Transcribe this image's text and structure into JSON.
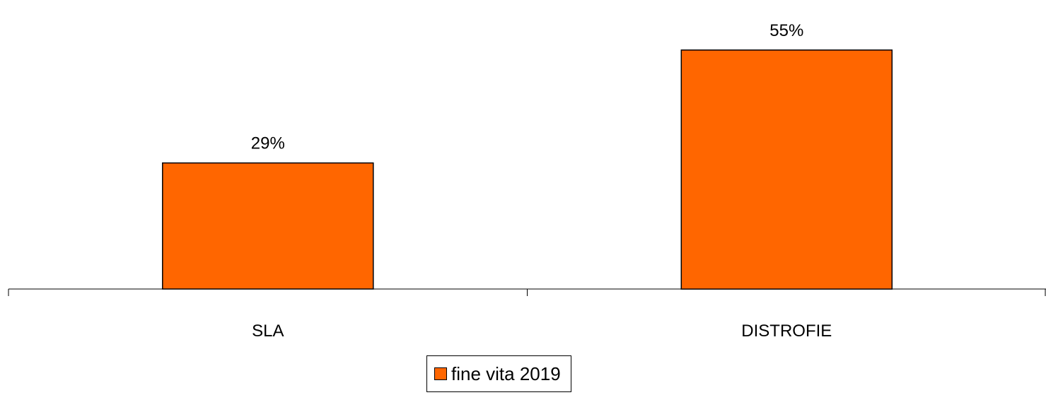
{
  "chart_data": {
    "type": "bar",
    "categories": [
      "SLA",
      "DISTROFIE"
    ],
    "series": [
      {
        "name": "fine vita 2019",
        "values": [
          29,
          55
        ],
        "color": "#FF6600",
        "data_labels": [
          "29%",
          "55%"
        ]
      }
    ],
    "title": "",
    "xlabel": "",
    "ylabel": "",
    "ylim": [
      0,
      60
    ],
    "grid": false,
    "legend_position": "bottom"
  }
}
